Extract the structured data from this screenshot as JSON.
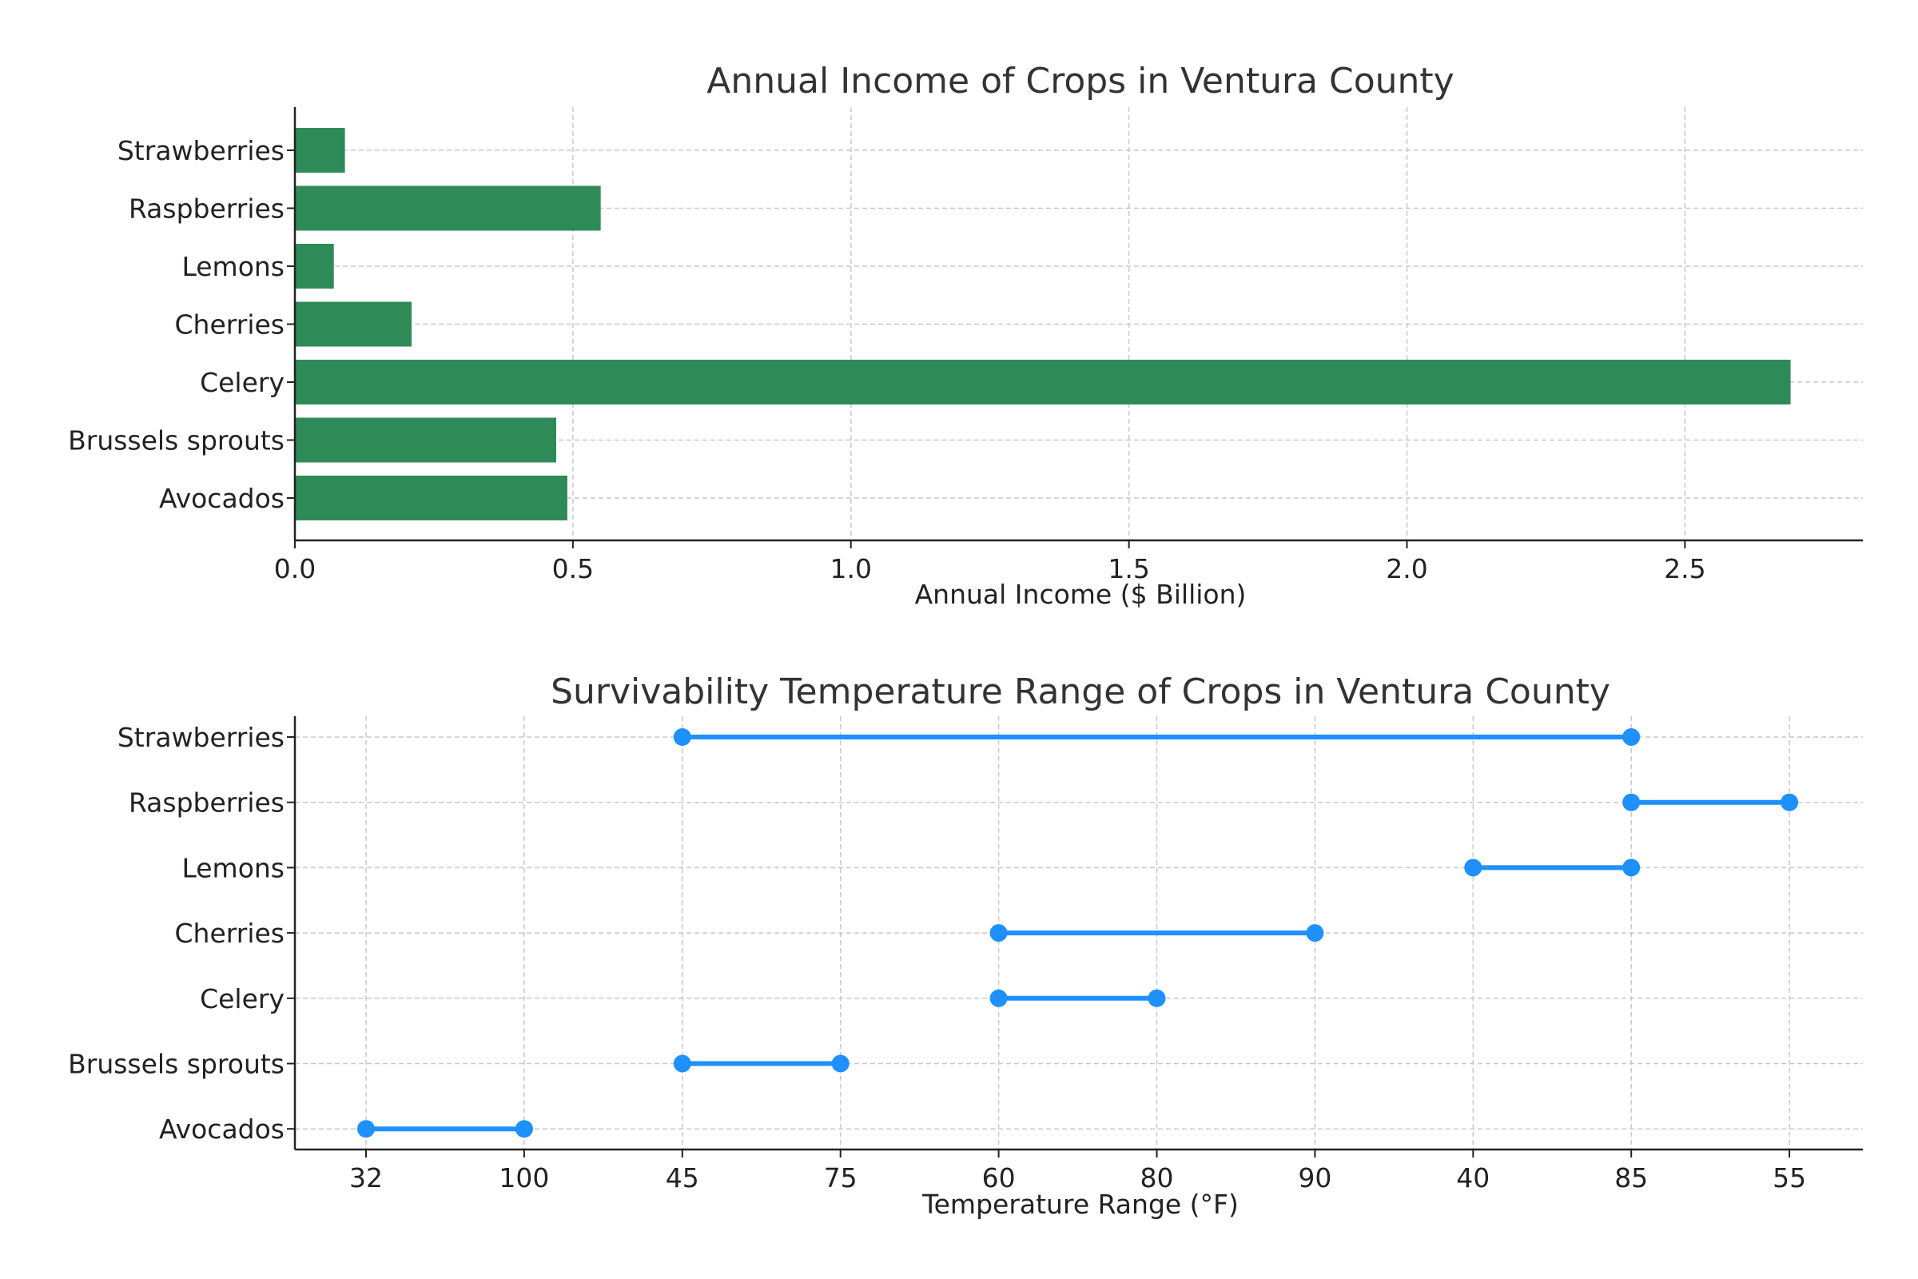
{
  "chart_data": [
    {
      "type": "bar",
      "orientation": "horizontal",
      "title": "Annual Income of Crops in Ventura County",
      "xlabel": "Annual Income ($ Billion)",
      "ylabel": "",
      "categories": [
        "Avocados",
        "Brussels sprouts",
        "Celery",
        "Cherries",
        "Lemons",
        "Raspberries",
        "Strawberries"
      ],
      "values": [
        0.49,
        0.47,
        2.69,
        0.21,
        0.07,
        0.55,
        0.09
      ],
      "xlim": [
        0,
        2.82
      ],
      "xticks": [
        "0.0",
        "0.5",
        "1.0",
        "1.5",
        "2.0",
        "2.5"
      ],
      "xtick_values": [
        0,
        0.5,
        1.0,
        1.5,
        2.0,
        2.5
      ],
      "color": "#2e8b57",
      "grid": true
    },
    {
      "type": "dumbbell",
      "title": "Survivability Temperature Range of Crops in Ventura County",
      "xlabel": "Temperature Range (°F)",
      "ylabel": "",
      "categories": [
        "Avocados",
        "Brussels sprouts",
        "Celery",
        "Cherries",
        "Lemons",
        "Raspberries",
        "Strawberries"
      ],
      "xticks": [
        "32",
        "100",
        "45",
        "75",
        "60",
        "80",
        "90",
        "40",
        "85",
        "55"
      ],
      "ranges": [
        {
          "category": "Avocados",
          "low": "32",
          "high": "100"
        },
        {
          "category": "Brussels sprouts",
          "low": "45",
          "high": "75"
        },
        {
          "category": "Celery",
          "low": "60",
          "high": "80"
        },
        {
          "category": "Cherries",
          "low": "60",
          "high": "90"
        },
        {
          "category": "Lemons",
          "low": "40",
          "high": "85"
        },
        {
          "category": "Raspberries",
          "low": "85",
          "high": "55"
        },
        {
          "category": "Strawberries",
          "low": "45",
          "high": "85"
        }
      ],
      "color": "#1e90ff",
      "grid": true
    }
  ]
}
